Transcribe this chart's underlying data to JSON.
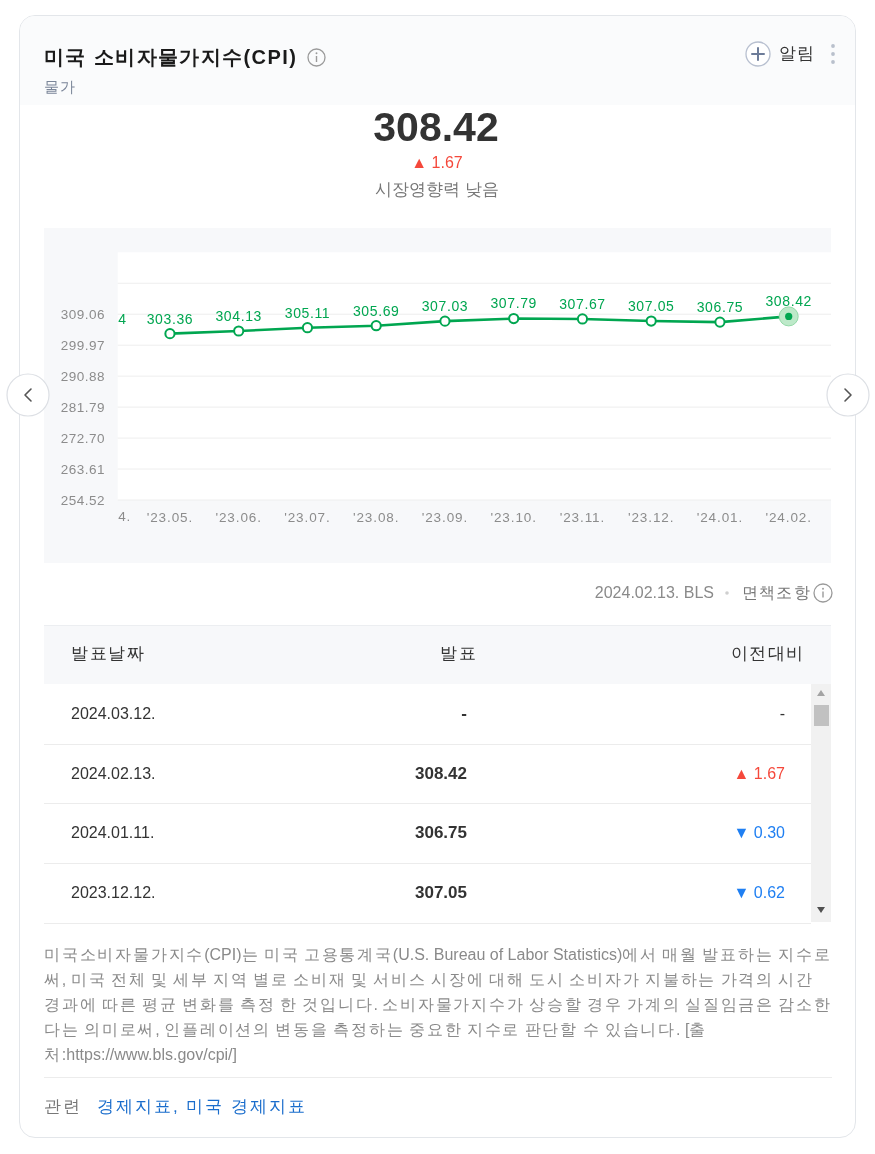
{
  "chart_data": [
    {
      "type": "line",
      "title": "미국 소비자물가지수(CPI)",
      "subtitle": "물가",
      "annotations": [
        "알림",
        "308.42",
        "▲ 1.67",
        "시장영향력 낮음",
        "2024.02.13. BLS",
        "면책조항",
        "4",
        "4."
      ],
      "categories": [
        null,
        "'23.05.",
        "'23.06.",
        "'23.07.",
        "'23.08.",
        "'23.09.",
        "'23.10.",
        "'23.11.",
        "'23.12.",
        "'24.01.",
        "'24.02."
      ],
      "values": [
        null,
        303.36,
        304.13,
        305.11,
        305.69,
        307.03,
        307.79,
        307.67,
        307.05,
        306.75,
        308.42
      ],
      "data_labels": true,
      "color": "#00a650",
      "ylim": [
        254.52,
        327.24
      ],
      "yticks": [
        254.52,
        263.61,
        {
          "value": 272.7,
          "label": "272.70"
        },
        281.79,
        290.88,
        299.97,
        309.06,
        {
          "value": 318.15,
          "label": null
        }
      ],
      "grid": "y",
      "marker": "circle",
      "line_style": "solid"
    },
    {
      "type": "other",
      "annotations": [
        "발표날짜",
        "발표",
        "이전대비",
        "2024.03.12.",
        "-",
        "-",
        "2024.02.13.",
        "308.42",
        "▲ 1.67",
        "2024.01.11.",
        "306.75",
        "▼ 0.30",
        "2023.12.12.",
        "307.05",
        "▼ 0.62",
        "미국소비자물가지수(CPI)는 미국 고용통계국(U.S. Bureau of Labor Statistics)에서 매월 발표하는 지수로써, 미국 전체 및 세부 지역 별로 소비재 및 서비스 시장에 대해 도시 소비자가 지불하는 가격의 시간 경과에 따른 평균 변화를 측정 한 것입니다. 소비자물가지수가 상승할 경우 가계의 실질임금은 감소한다는 의미로써, 인플레이션의 변동을 측정하는 중요한 지수로 판단할 수 있습니다. [출처:https://www.bls.gov/cpi/]",
        "관련",
        "경제지표, 미국 경제지표"
      ]
    }
  ]
}
